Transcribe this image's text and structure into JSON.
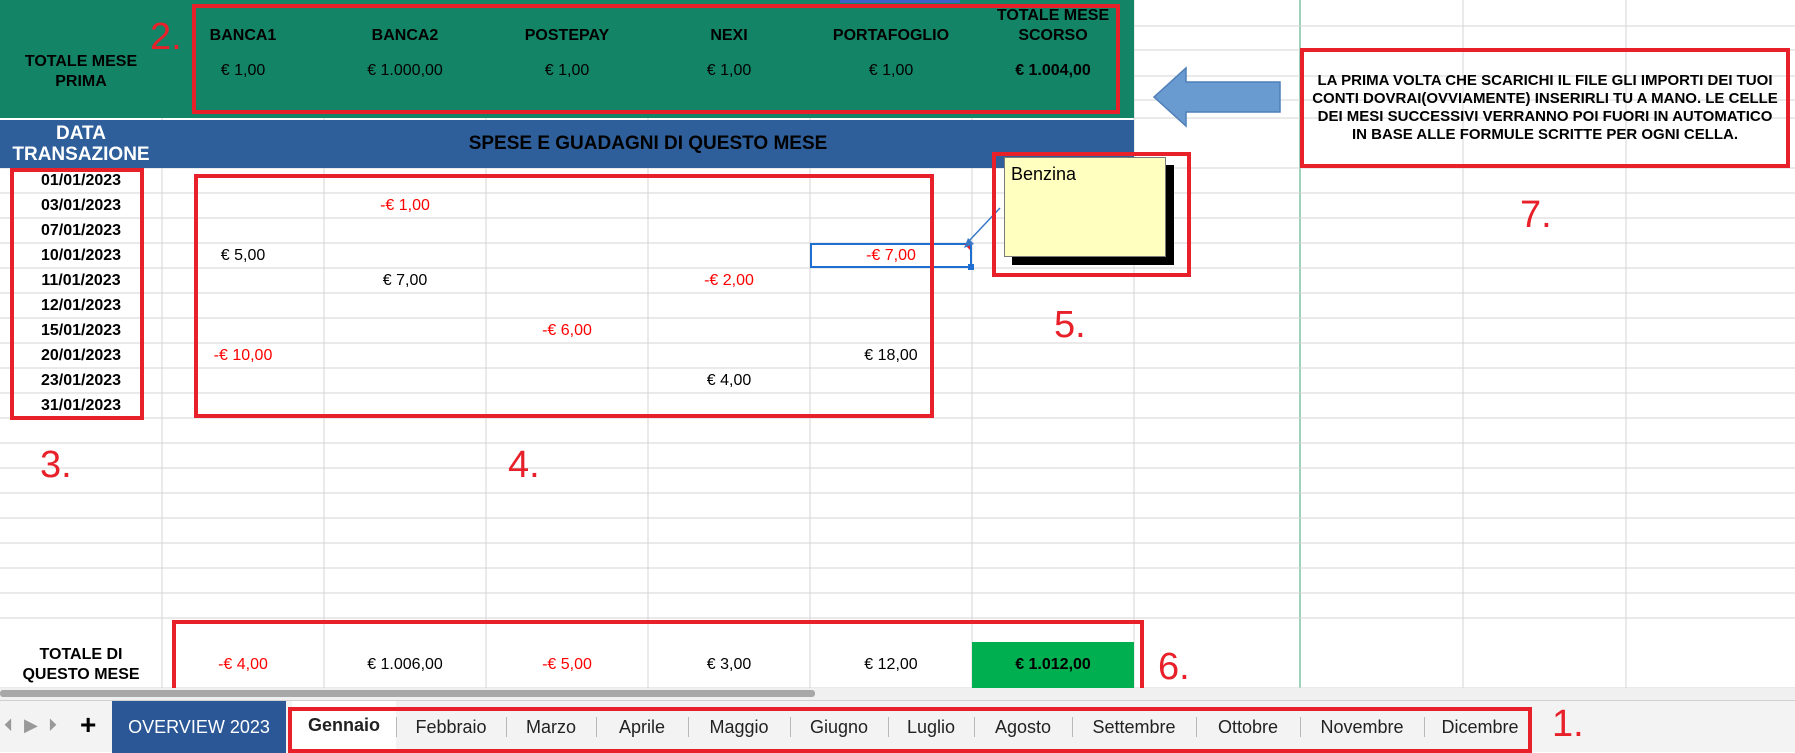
{
  "header": {
    "prev_total_label": "TOTALE MESE PRIMA",
    "accounts": [
      "BANCA1",
      "BANCA2",
      "POSTEPAY",
      "NEXI",
      "PORTAFOGLIO"
    ],
    "prev_total_col_label": "TOTALE MESE SCORSO",
    "prev_values": [
      "€ 1,00",
      "€ 1.000,00",
      "€ 1,00",
      "€ 1,00",
      "€ 1,00"
    ],
    "prev_total_value": "€ 1.004,00"
  },
  "section": {
    "date_label": "DATA TRANSAZIONE",
    "title": "SPESE E GUADAGNI DI QUESTO MESE"
  },
  "dates": [
    "01/01/2023",
    "03/01/2023",
    "07/01/2023",
    "10/01/2023",
    "11/01/2023",
    "12/01/2023",
    "15/01/2023",
    "20/01/2023",
    "23/01/2023",
    "31/01/2023"
  ],
  "transactions": [
    {
      "row": 1,
      "col": 1,
      "value": "-€ 1,00",
      "negative": true
    },
    {
      "row": 3,
      "col": 0,
      "value": "€ 5,00",
      "negative": false
    },
    {
      "row": 3,
      "col": 4,
      "value": "-€ 7,00",
      "negative": true
    },
    {
      "row": 4,
      "col": 1,
      "value": "€ 7,00",
      "negative": false
    },
    {
      "row": 4,
      "col": 3,
      "value": "-€ 2,00",
      "negative": true
    },
    {
      "row": 6,
      "col": 2,
      "value": "-€ 6,00",
      "negative": true
    },
    {
      "row": 7,
      "col": 0,
      "value": "-€ 10,00",
      "negative": true
    },
    {
      "row": 7,
      "col": 4,
      "value": "€ 18,00",
      "negative": false
    },
    {
      "row": 8,
      "col": 3,
      "value": "€ 4,00",
      "negative": false
    }
  ],
  "comment": {
    "text": "Benzina"
  },
  "note": {
    "text": "LA PRIMA VOLTA CHE SCARICHI IL FILE GLI IMPORTI DEI TUOI CONTI DOVRAI(OVVIAMENTE) INSERIRLI TU A MANO. LE CELLE DEI MESI SUCCESSIVI VERRANNO POI FUORI IN AUTOMATICO IN BASE ALLE FORMULE SCRITTE PER OGNI CELLA."
  },
  "totals": {
    "label": "TOTALE DI QUESTO MESE",
    "values": [
      {
        "value": "-€ 4,00",
        "negative": true
      },
      {
        "value": "€ 1.006,00",
        "negative": false
      },
      {
        "value": "-€ 5,00",
        "negative": true
      },
      {
        "value": "€ 3,00",
        "negative": false
      },
      {
        "value": "€ 12,00",
        "negative": false
      }
    ],
    "grand_total": "€ 1.012,00"
  },
  "annotations": {
    "n1": "1.",
    "n2": "2.",
    "n3": "3.",
    "n4": "4.",
    "n5": "5.",
    "n6": "6.",
    "n7": "7."
  },
  "tabs": {
    "overview": "OVERVIEW 2023",
    "months": [
      "Gennaio",
      "Febbraio",
      "Marzo",
      "Aprile",
      "Maggio",
      "Giugno",
      "Luglio",
      "Agosto",
      "Settembre",
      "Ottobre",
      "Novembre",
      "Dicembre"
    ],
    "active": "Gennaio",
    "add_icon": "plus-icon"
  },
  "colors": {
    "header_green": "#148466",
    "section_blue": "#2e5f9b",
    "grand_total_green": "#00b050",
    "annotation_red": "#e8202a",
    "arrow_blue": "#6a9bd0",
    "comment_yellow": "#ffffc0"
  }
}
